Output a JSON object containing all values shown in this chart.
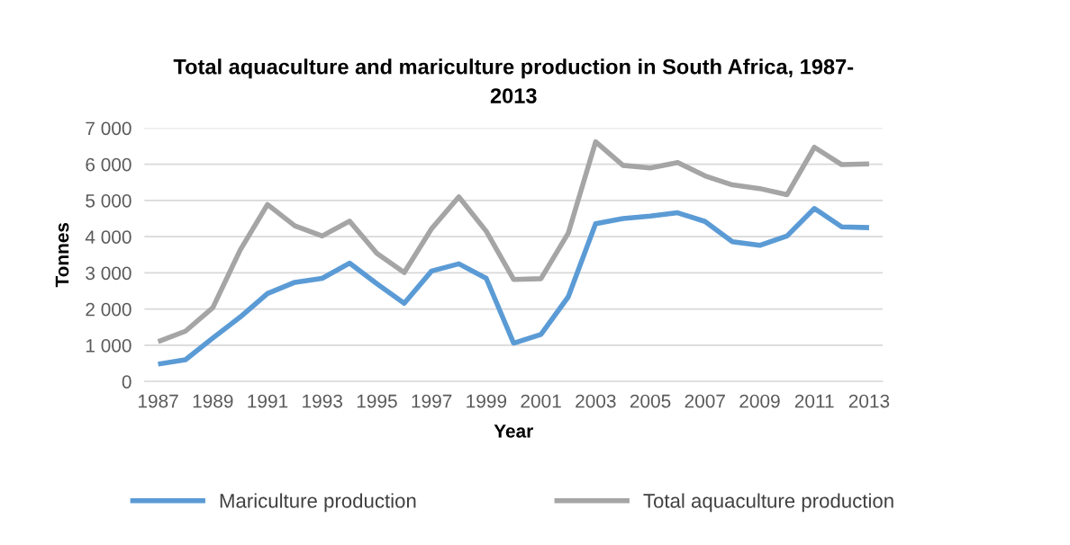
{
  "chart_data": {
    "type": "line",
    "title": "Total aquaculture and mariculture production in South Africa, 1987-\n2013",
    "xlabel": "Year",
    "ylabel": "Tonnes",
    "x": [
      1987,
      1988,
      1989,
      1990,
      1991,
      1992,
      1993,
      1994,
      1995,
      1996,
      1997,
      1998,
      1999,
      2000,
      2001,
      2002,
      2003,
      2004,
      2005,
      2006,
      2007,
      2008,
      2009,
      2010,
      2011,
      2012,
      2013
    ],
    "series": [
      {
        "name": "Mariculture production",
        "color": "#5b9bd5",
        "values": [
          480,
          600,
          1200,
          1780,
          2430,
          2740,
          2850,
          3270,
          2700,
          2160,
          3050,
          3250,
          2850,
          1060,
          1300,
          2340,
          4360,
          4500,
          4570,
          4660,
          4420,
          3860,
          3760,
          4020,
          4780,
          4270,
          4250
        ]
      },
      {
        "name": "Total aquaculture production",
        "color": "#a5a5a5",
        "values": [
          1100,
          1390,
          2040,
          3630,
          4890,
          4300,
          4020,
          4430,
          3540,
          3010,
          4220,
          5100,
          4150,
          2820,
          2840,
          4100,
          6620,
          5970,
          5900,
          6050,
          5680,
          5430,
          5330,
          5160,
          6470,
          5990,
          6010
        ]
      }
    ],
    "xlim": [
      1986.5,
      2013.5
    ],
    "xticks": [
      1987,
      1989,
      1991,
      1993,
      1995,
      1997,
      1999,
      2001,
      2003,
      2005,
      2007,
      2009,
      2011,
      2013
    ],
    "ylim": [
      0,
      7000
    ],
    "yticks": [
      0,
      {
        "value": 1000,
        "label": "1 000"
      },
      {
        "value": 2000,
        "label": "2 000"
      },
      {
        "value": 3000,
        "label": "3 000"
      },
      {
        "value": 4000,
        "label": "4 000"
      },
      {
        "value": 5000,
        "label": "5 000"
      },
      {
        "value": 6000,
        "label": "6 000"
      },
      {
        "value": 7000,
        "label": "7 000"
      }
    ],
    "grid": "y",
    "legend": "bottom",
    "marker": "none",
    "line_style": "solid"
  }
}
